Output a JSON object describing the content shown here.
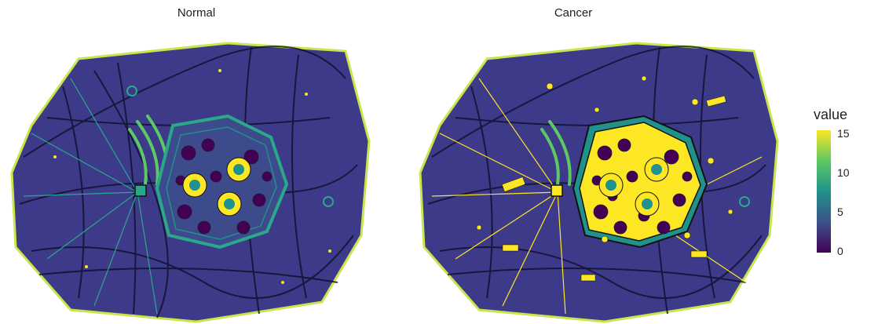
{
  "panels": [
    {
      "title": "Normal",
      "nucleus_fill": "#440154",
      "cytoplasm": "#3d4a8c",
      "organelle": "#2aa98a",
      "highlight": "#fde725"
    },
    {
      "title": "Cancer",
      "nucleus_fill": "#fde725",
      "cytoplasm": "#3d4a8c",
      "organelle": "#2aa98a",
      "highlight": "#fde725"
    }
  ],
  "legend": {
    "title": "value",
    "ticks": [
      "15",
      "10",
      "5",
      "0"
    ],
    "min": 0,
    "max": 15
  },
  "colors": {
    "viridis_low": "#440154",
    "viridis_mid": "#21918c",
    "viridis_high": "#fde725",
    "outline": "#1a1a2e"
  }
}
